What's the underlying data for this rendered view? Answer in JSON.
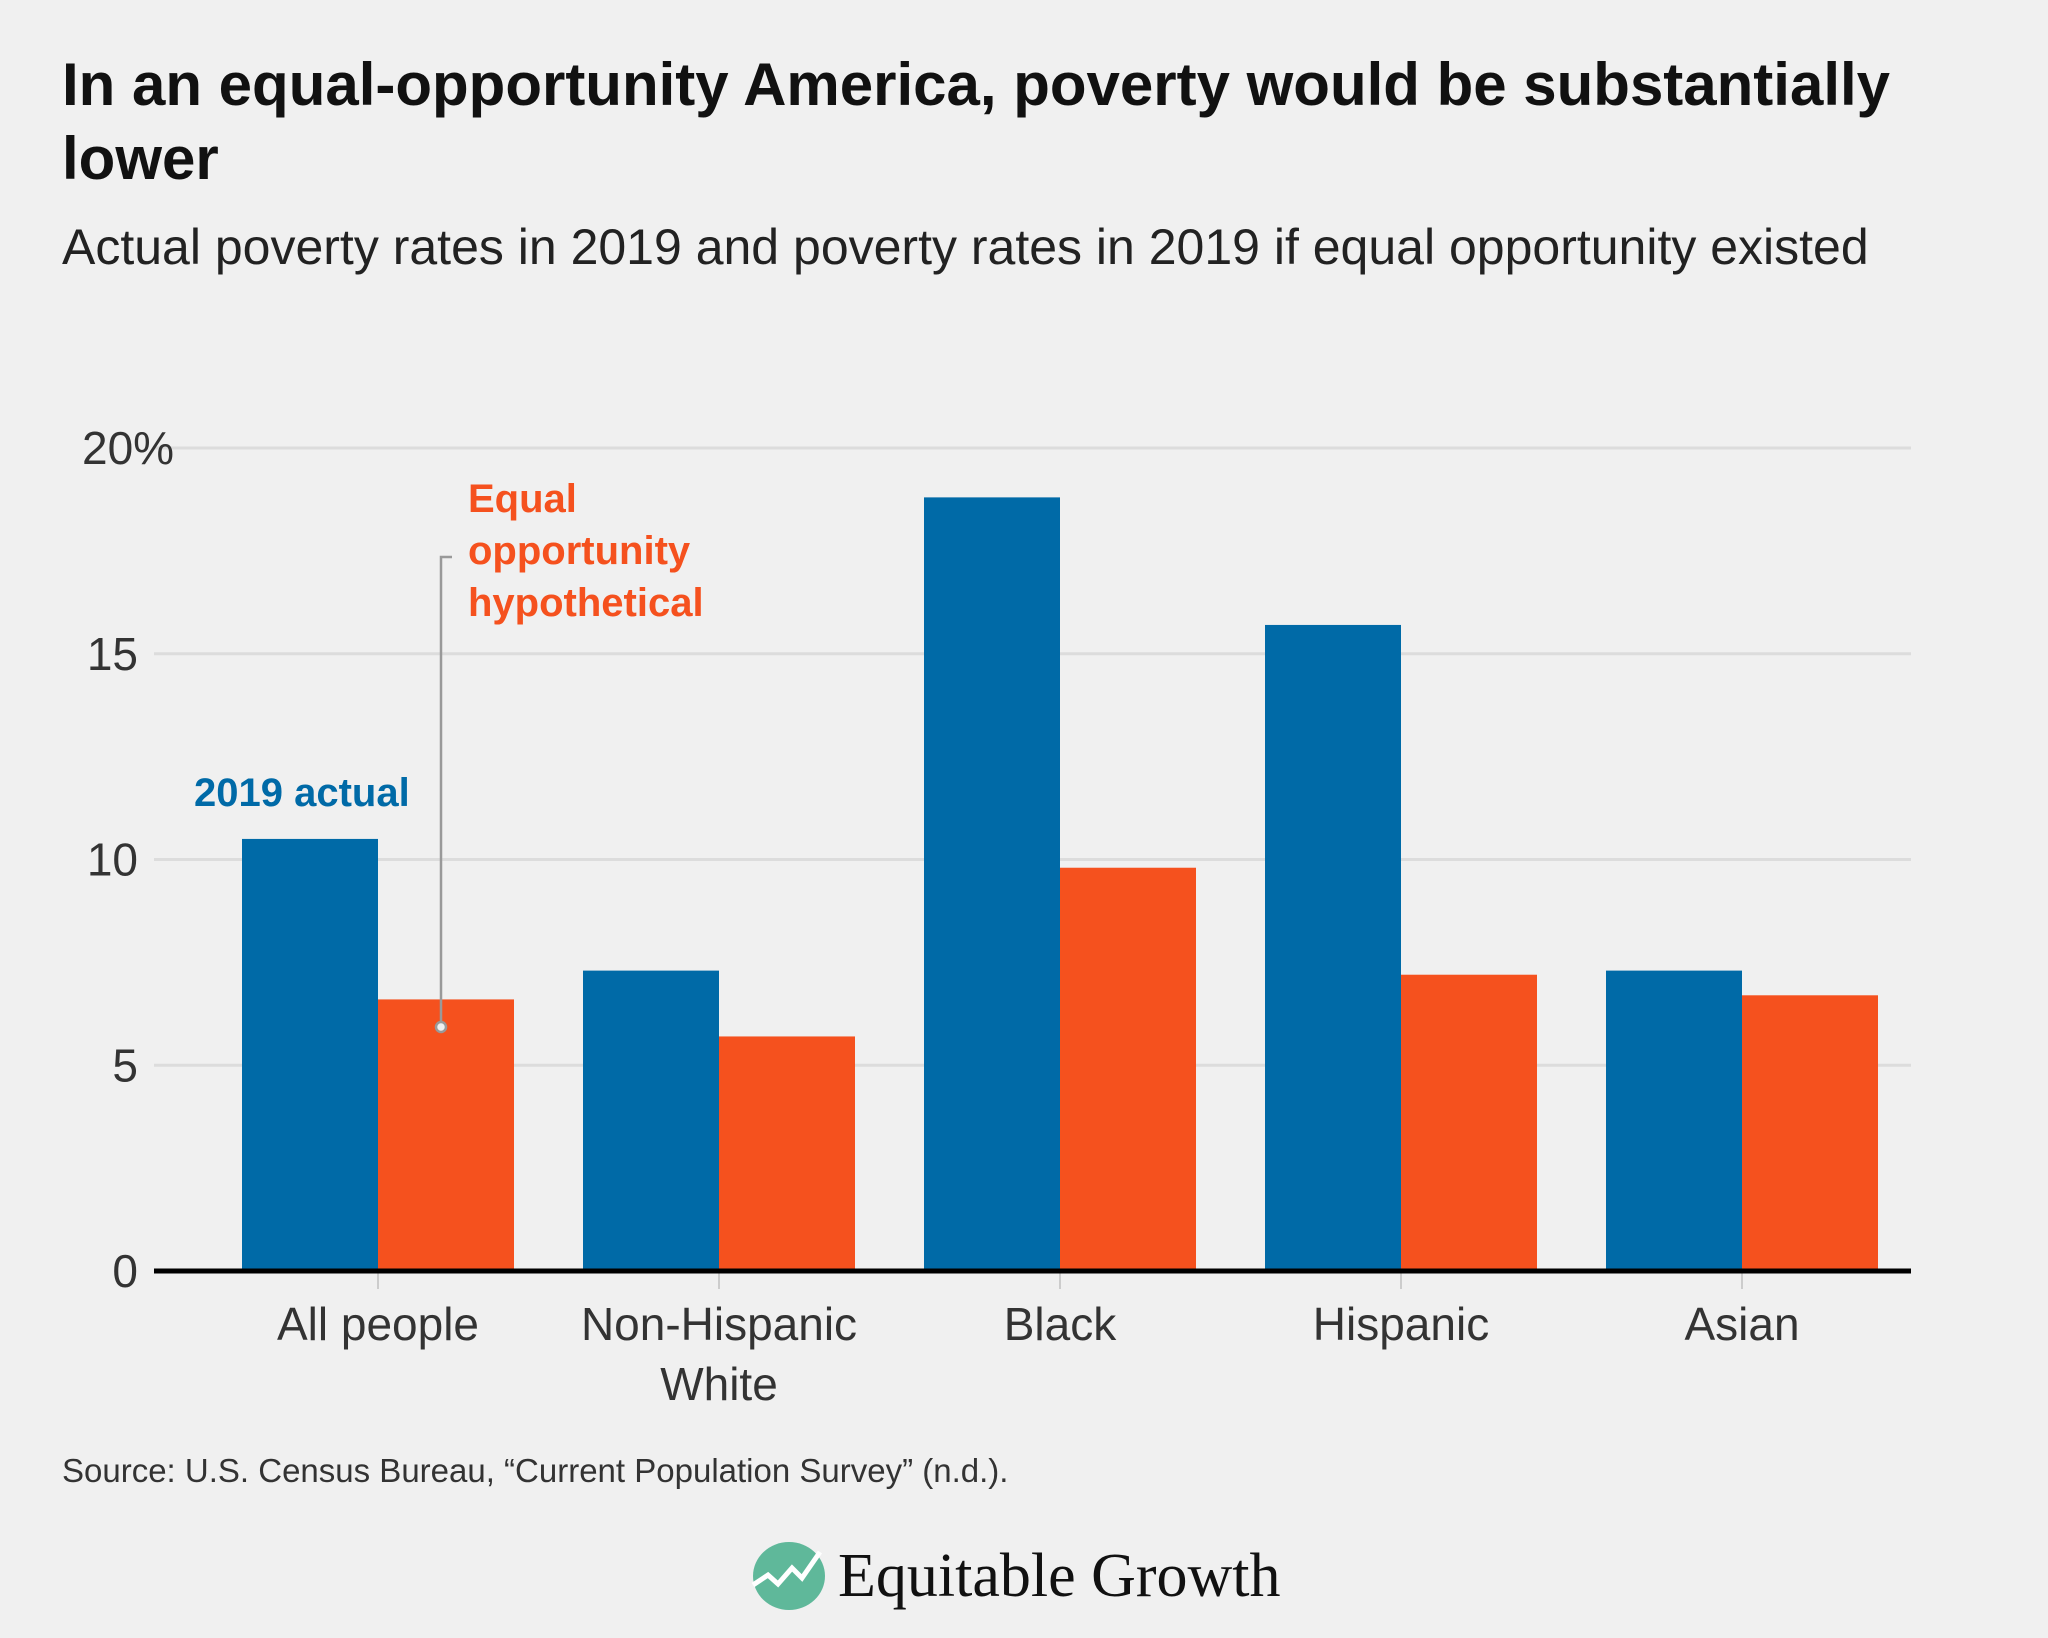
{
  "title": "In an equal-opportunity America, poverty would be substantially lower",
  "subtitle": "Actual poverty rates in 2019 and poverty rates in 2019 if equal opportunity existed",
  "source": "Source: U.S. Census Bureau, “Current Population Survey” (n.d.).",
  "logo_text": "Equitable Growth",
  "chart_data": {
    "type": "bar",
    "categories": [
      "All people",
      "Non-Hispanic White",
      "Black",
      "Hispanic",
      "Asian"
    ],
    "category_lines": [
      [
        "All people"
      ],
      [
        "Non-Hispanic",
        "White"
      ],
      [
        "Black"
      ],
      [
        "Hispanic"
      ],
      [
        "Asian"
      ]
    ],
    "series": [
      {
        "name": "2019 actual",
        "color": "#006aa7",
        "values": [
          10.5,
          7.3,
          18.8,
          15.7,
          7.3
        ]
      },
      {
        "name": "Equal opportunity hypothetical",
        "name_lines": [
          "Equal",
          "opportunity",
          "hypothetical"
        ],
        "color": "#f5511e",
        "values": [
          6.6,
          5.7,
          9.8,
          7.2,
          6.7
        ]
      }
    ],
    "ylim": [
      0,
      20
    ],
    "yticks": [
      0,
      5,
      10,
      15,
      20
    ],
    "ytick_labels": [
      "0",
      "5",
      "10",
      "15",
      "20%"
    ],
    "grid": true,
    "legend": "direct labels on first group"
  }
}
